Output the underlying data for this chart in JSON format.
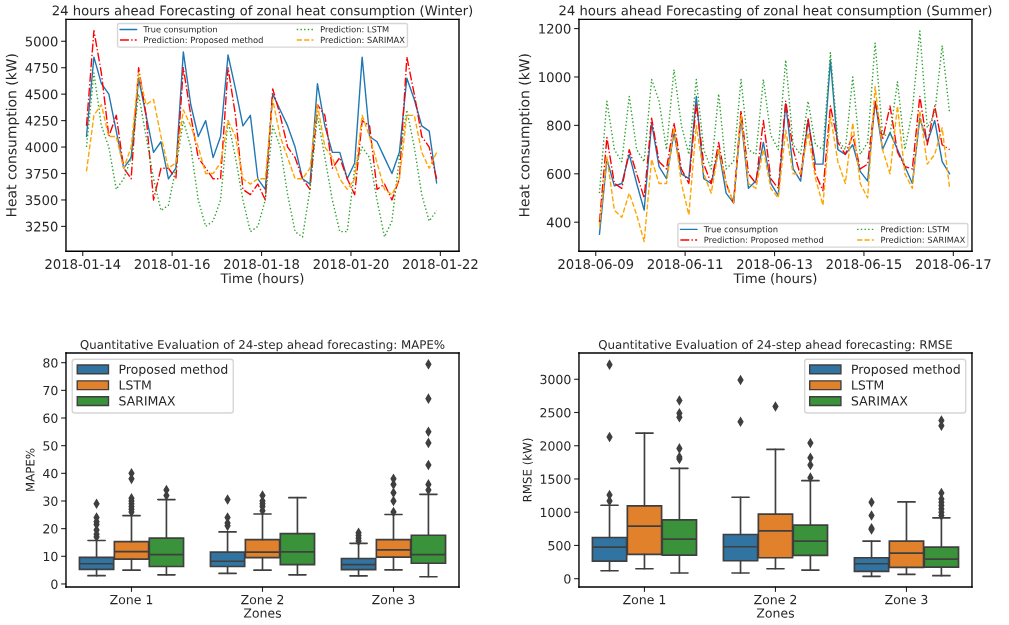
{
  "chart_data": [
    {
      "type": "line",
      "title": "24 hours ahead Forecasting of zonal heat consumption (Winter)",
      "xlabel": "Time (hours)",
      "ylabel": "Heat consumption (kW)",
      "legend": "top",
      "x": [
        "2018-01-14T02:00",
        "2018-01-14T06:00",
        "2018-01-14T10:00",
        "2018-01-14T14:00",
        "2018-01-14T18:00",
        "2018-01-14T22:00",
        "2018-01-15T02:00",
        "2018-01-15T06:00",
        "2018-01-15T10:00",
        "2018-01-15T14:00",
        "2018-01-15T18:00",
        "2018-01-15T22:00",
        "2018-01-16T02:00",
        "2018-01-16T06:00",
        "2018-01-16T10:00",
        "2018-01-16T14:00",
        "2018-01-16T18:00",
        "2018-01-16T22:00",
        "2018-01-17T02:00",
        "2018-01-17T06:00",
        "2018-01-17T10:00",
        "2018-01-17T14:00",
        "2018-01-17T18:00",
        "2018-01-17T22:00",
        "2018-01-18T02:00",
        "2018-01-18T06:00",
        "2018-01-18T10:00",
        "2018-01-18T14:00",
        "2018-01-18T18:00",
        "2018-01-18T22:00",
        "2018-01-19T02:00",
        "2018-01-19T06:00",
        "2018-01-19T10:00",
        "2018-01-19T14:00",
        "2018-01-19T18:00",
        "2018-01-19T22:00",
        "2018-01-20T02:00",
        "2018-01-20T06:00",
        "2018-01-20T10:00",
        "2018-01-20T14:00",
        "2018-01-20T18:00",
        "2018-01-20T22:00",
        "2018-01-21T02:00",
        "2018-01-21T06:00",
        "2018-01-21T10:00",
        "2018-01-21T14:00",
        "2018-01-21T18:00",
        "2018-01-21T22:00"
      ],
      "series": [
        {
          "name": "True consumption",
          "color": "#1f77b4",
          "line_style": "solid",
          "values": [
            4100,
            4850,
            4600,
            4500,
            4150,
            3800,
            3900,
            4650,
            4300,
            3950,
            4050,
            3700,
            3800,
            4900,
            4400,
            4100,
            4250,
            3900,
            4100,
            4870,
            4550,
            4200,
            4300,
            3700,
            3600,
            4500,
            4350,
            4200,
            4000,
            3700,
            3650,
            4600,
            4200,
            3950,
            3950,
            3700,
            3850,
            4850,
            4100,
            4050,
            3900,
            3750,
            3950,
            4650,
            4450,
            4200,
            4150,
            3660
          ]
        },
        {
          "name": "Prediction: Proposed method",
          "color": "#ff0000",
          "line_style": "dashdot",
          "values": [
            4200,
            5100,
            4700,
            4100,
            4300,
            3800,
            3700,
            4750,
            4300,
            3500,
            3800,
            3800,
            3700,
            4750,
            4300,
            3900,
            3800,
            3700,
            3700,
            4750,
            4300,
            3600,
            3550,
            3650,
            3500,
            4550,
            4300,
            4000,
            3900,
            3700,
            3600,
            4400,
            4300,
            3800,
            3900,
            3700,
            3550,
            4250,
            4200,
            3600,
            3650,
            3500,
            3700,
            4850,
            4500,
            4100,
            4000,
            3700
          ]
        },
        {
          "name": "Prediction: LSTM",
          "color": "#2ca02c",
          "line_style": "dotted",
          "values": [
            4000,
            4700,
            4200,
            4000,
            3600,
            3700,
            3900,
            4500,
            4100,
            3700,
            3400,
            3450,
            3800,
            4250,
            4000,
            3500,
            3250,
            3300,
            3500,
            4250,
            3900,
            3500,
            3200,
            3250,
            3500,
            4200,
            4000,
            3550,
            3200,
            3150,
            3600,
            4300,
            3900,
            3500,
            3200,
            3200,
            3800,
            4000,
            3900,
            3500,
            3150,
            3300,
            3900,
            4350,
            4000,
            3550,
            3300,
            3400
          ]
        },
        {
          "name": "Prediction: SARIMAX",
          "color": "#ffa500",
          "line_style": "dashed",
          "values": [
            3770,
            4300,
            4400,
            4100,
            4100,
            3800,
            4000,
            4700,
            4400,
            4450,
            4100,
            3800,
            3850,
            4350,
            4200,
            4000,
            3750,
            3750,
            3850,
            4250,
            4100,
            3700,
            3650,
            3700,
            3700,
            4450,
            4100,
            3900,
            3700,
            3700,
            3800,
            4400,
            4000,
            3900,
            3700,
            3600,
            3700,
            4300,
            4100,
            3850,
            3600,
            3550,
            3700,
            4300,
            4300,
            3950,
            3800,
            3950
          ]
        }
      ],
      "xlim": [
        "2018-01-13T15:00",
        "2018-01-22T10:00"
      ],
      "xticks": [
        "2018-01-14",
        "2018-01-16",
        "2018-01-18",
        "2018-01-20",
        "2018-01-22"
      ],
      "ylim": [
        3015,
        5207
      ],
      "yticks": [
        3250,
        3500,
        3750,
        4000,
        4250,
        4500,
        4750,
        5000
      ]
    },
    {
      "type": "line",
      "title": "24 hours ahead Forecasting of zonal heat consumption (Summer)",
      "xlabel": "Time (hours)",
      "ylabel": "Heat consumption (kW)",
      "legend": "bottom right",
      "x": [
        "2018-06-09T02:00",
        "2018-06-09T06:00",
        "2018-06-09T10:00",
        "2018-06-09T14:00",
        "2018-06-09T18:00",
        "2018-06-09T22:00",
        "2018-06-10T02:00",
        "2018-06-10T06:00",
        "2018-06-10T10:00",
        "2018-06-10T14:00",
        "2018-06-10T18:00",
        "2018-06-10T22:00",
        "2018-06-11T02:00",
        "2018-06-11T06:00",
        "2018-06-11T10:00",
        "2018-06-11T14:00",
        "2018-06-11T18:00",
        "2018-06-11T22:00",
        "2018-06-12T02:00",
        "2018-06-12T06:00",
        "2018-06-12T10:00",
        "2018-06-12T14:00",
        "2018-06-12T18:00",
        "2018-06-12T22:00",
        "2018-06-13T02:00",
        "2018-06-13T06:00",
        "2018-06-13T10:00",
        "2018-06-13T14:00",
        "2018-06-13T18:00",
        "2018-06-13T22:00",
        "2018-06-14T02:00",
        "2018-06-14T06:00",
        "2018-06-14T10:00",
        "2018-06-14T14:00",
        "2018-06-14T18:00",
        "2018-06-14T22:00",
        "2018-06-15T02:00",
        "2018-06-15T06:00",
        "2018-06-15T10:00",
        "2018-06-15T14:00",
        "2018-06-15T18:00",
        "2018-06-15T22:00",
        "2018-06-16T02:00",
        "2018-06-16T06:00",
        "2018-06-16T10:00",
        "2018-06-16T14:00",
        "2018-06-16T18:00",
        "2018-06-16T22:00"
      ],
      "series": [
        {
          "name": "True consumption",
          "color": "#1f77b4",
          "line_style": "solid",
          "values": [
            350,
            660,
            550,
            560,
            680,
            560,
            450,
            810,
            630,
            580,
            770,
            600,
            580,
            920,
            580,
            560,
            700,
            520,
            480,
            830,
            540,
            570,
            730,
            560,
            510,
            890,
            620,
            570,
            820,
            640,
            640,
            1070,
            700,
            680,
            720,
            610,
            570,
            900,
            700,
            770,
            700,
            630,
            560,
            830,
            730,
            820,
            650,
            600
          ]
        },
        {
          "name": "Prediction: Proposed method",
          "color": "#ff0000",
          "line_style": "dashdot",
          "values": [
            400,
            750,
            560,
            540,
            700,
            600,
            500,
            830,
            650,
            620,
            810,
            620,
            560,
            890,
            640,
            560,
            730,
            560,
            480,
            860,
            600,
            560,
            820,
            580,
            540,
            900,
            700,
            590,
            830,
            600,
            530,
            880,
            730,
            680,
            760,
            620,
            640,
            900,
            740,
            880,
            690,
            630,
            620,
            920,
            720,
            880,
            720,
            700
          ]
        },
        {
          "name": "Prediction: LSTM",
          "color": "#2ca02c",
          "line_style": "dotted",
          "values": [
            520,
            900,
            700,
            650,
            920,
            700,
            650,
            990,
            900,
            700,
            1030,
            800,
            680,
            990,
            700,
            620,
            930,
            620,
            650,
            990,
            700,
            680,
            990,
            760,
            700,
            1070,
            720,
            680,
            900,
            720,
            700,
            1100,
            740,
            700,
            1000,
            680,
            730,
            1140,
            760,
            760,
            980,
            700,
            860,
            1190,
            790,
            850,
            1130,
            850
          ]
        },
        {
          "name": "Prediction: SARIMAX",
          "color": "#ffa500",
          "line_style": "dashed",
          "values": [
            380,
            670,
            450,
            420,
            520,
            430,
            320,
            660,
            560,
            560,
            790,
            560,
            430,
            800,
            600,
            520,
            700,
            560,
            480,
            840,
            560,
            540,
            700,
            540,
            500,
            780,
            600,
            600,
            770,
            580,
            470,
            840,
            650,
            560,
            810,
            560,
            500,
            960,
            700,
            600,
            880,
            600,
            540,
            860,
            640,
            680,
            790,
            540
          ]
        }
      ],
      "xlim": [
        "2018-06-08T15:00",
        "2018-06-17T10:00"
      ],
      "xticks": [
        "2018-06-09",
        "2018-06-11",
        "2018-06-13",
        "2018-06-15",
        "2018-06-17"
      ],
      "ylim": [
        280,
        1238
      ],
      "yticks": [
        400,
        600,
        800,
        1000,
        1200
      ]
    },
    {
      "type": "box",
      "title": "Quantitative Evaluation of 24-step ahead forecasting: MAPE%",
      "xlabel": "Zones",
      "ylabel": "MAPE%",
      "legend": "top left",
      "marker": "diamond",
      "categories": [
        "Zone 1",
        "Zone 2",
        "Zone 3"
      ],
      "series": [
        {
          "name": "Proposed method",
          "color": "#3274a1",
          "boxes": [
            {
              "low": 3,
              "q1": 5.3,
              "median": 7.3,
              "q3": 9.6,
              "high": 15.7,
              "outliers": [
                17,
                18,
                19.5,
                21.5,
                22.5,
                24,
                29
              ]
            },
            {
              "low": 3.8,
              "q1": 6.3,
              "median": 8.2,
              "q3": 11.5,
              "high": 18.8,
              "outliers": [
                21,
                22,
                24,
                30.5
              ]
            },
            {
              "low": 2.9,
              "q1": 5.2,
              "median": 7,
              "q3": 9.2,
              "high": 14.7,
              "outliers": [
                15.5,
                16.5,
                17.5,
                18.5
              ]
            }
          ]
        },
        {
          "name": "LSTM",
          "color": "#e1812c",
          "boxes": [
            {
              "low": 5,
              "q1": 9,
              "median": 11.7,
              "q3": 15.3,
              "high": 24.7,
              "outliers": [
                26,
                27,
                28,
                29,
                30,
                31,
                38,
                40
              ]
            },
            {
              "low": 5,
              "q1": 9.5,
              "median": 11.5,
              "q3": 16,
              "high": 25.3,
              "outliers": [
                26.5,
                28,
                29,
                30,
                32
              ]
            },
            {
              "low": 5.1,
              "q1": 9.7,
              "median": 12.3,
              "q3": 16,
              "high": 25.1,
              "outliers": [
                26,
                30,
                33,
                36,
                38
              ]
            }
          ]
        },
        {
          "name": "SARIMAX",
          "color": "#3a923a",
          "boxes": [
            {
              "low": 3.3,
              "q1": 6.3,
              "median": 10.6,
              "q3": 16.6,
              "high": 30.5,
              "outliers": [
                32,
                34
              ]
            },
            {
              "low": 3.3,
              "q1": 7,
              "median": 11.6,
              "q3": 18.2,
              "high": 31.2
            },
            {
              "low": 2.6,
              "q1": 7.5,
              "median": 10.6,
              "q3": 17.6,
              "high": 32.4,
              "outliers": [
                34,
                36,
                43,
                51,
                55,
                67,
                79.4
              ]
            }
          ]
        }
      ],
      "ylim": [
        -1.1,
        83.5
      ],
      "yticks": [
        0,
        10,
        20,
        30,
        40,
        50,
        60,
        70,
        80
      ]
    },
    {
      "type": "box",
      "title": "Quantitative Evaluation of 24-step ahead forecasting: RMSE",
      "xlabel": "Zones",
      "ylabel": "RMSE (kW)",
      "legend": "top right",
      "marker": "diamond",
      "categories": [
        "Zone 1",
        "Zone 2",
        "Zone 3"
      ],
      "series": [
        {
          "name": "Proposed method",
          "color": "#3274a1",
          "boxes": [
            {
              "low": 120,
              "q1": 265,
              "median": 475,
              "q3": 620,
              "high": 1105,
              "outliers": [
                1170,
                1260,
                2130,
                3220
              ]
            },
            {
              "low": 85,
              "q1": 270,
              "median": 480,
              "q3": 665,
              "high": 1225,
              "outliers": [
                2360,
                2990
              ]
            },
            {
              "low": 35,
              "q1": 110,
              "median": 225,
              "q3": 315,
              "high": 565,
              "outliers": [
                740,
                760,
                950,
                1150
              ]
            }
          ]
        },
        {
          "name": "LSTM",
          "color": "#e1812c",
          "boxes": [
            {
              "low": 150,
              "q1": 365,
              "median": 790,
              "q3": 1095,
              "high": 2190
            },
            {
              "low": 150,
              "q1": 315,
              "median": 720,
              "q3": 970,
              "high": 1945,
              "outliers": [
                2590
              ]
            },
            {
              "low": 65,
              "q1": 170,
              "median": 385,
              "q3": 565,
              "high": 1155
            }
          ]
        },
        {
          "name": "SARIMAX",
          "color": "#3a923a",
          "boxes": [
            {
              "low": 85,
              "q1": 355,
              "median": 595,
              "q3": 885,
              "high": 1660,
              "outliers": [
                1800,
                1830,
                1960,
                2430,
                2490,
                2680
              ]
            },
            {
              "low": 130,
              "q1": 350,
              "median": 565,
              "q3": 805,
              "high": 1475,
              "outliers": [
                1520,
                1710,
                1820,
                2040
              ]
            },
            {
              "low": 45,
              "q1": 175,
              "median": 295,
              "q3": 475,
              "high": 915,
              "outliers": [
                950,
                1000,
                1050,
                1100,
                1150,
                1200,
                1290,
                2300,
                2380
              ]
            }
          ]
        }
      ],
      "ylim": [
        -125,
        3395
      ],
      "yticks": [
        0,
        500,
        1000,
        1500,
        2000,
        2500,
        3000
      ]
    }
  ]
}
